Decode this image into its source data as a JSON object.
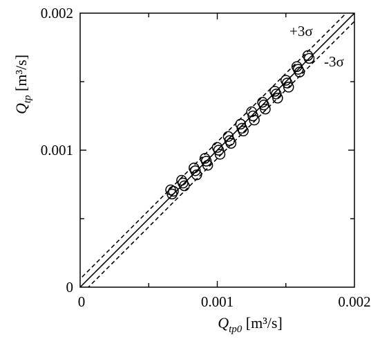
{
  "chart_data": {
    "type": "scatter",
    "x_axis": {
      "title_var": "Q",
      "title_sub": "tp0",
      "title_unit": " [m³/s]",
      "range": [
        0,
        0.002
      ],
      "ticks": [
        0,
        0.001,
        0.002
      ],
      "tick_labels": [
        "0",
        "0.001",
        "0.002"
      ],
      "minor_ticks": [
        0.0005,
        0.0015
      ]
    },
    "y_axis": {
      "title_var": "Q",
      "title_sub": "tp",
      "title_unit": " [m³/s]",
      "range": [
        0,
        0.002
      ],
      "ticks": [
        0,
        0.001,
        0.002
      ],
      "tick_labels": [
        "0",
        "0.001",
        "0.002"
      ],
      "minor_ticks": [
        0.0005,
        0.0015
      ]
    },
    "grid": false,
    "lines": [
      {
        "kind": "identity",
        "style": "solid",
        "intercept": 0.0
      },
      {
        "kind": "upper_bound",
        "style": "dashed",
        "intercept": 6e-05,
        "label": "+3σ"
      },
      {
        "kind": "lower_bound",
        "style": "dashed",
        "intercept": -6e-05,
        "label": "-3σ"
      }
    ],
    "series": [
      {
        "marker": "open-circle",
        "points": [
          [
            0.00066,
            0.00071
          ],
          [
            0.00067,
            0.00068
          ],
          [
            0.00068,
            0.0007
          ],
          [
            0.00074,
            0.00078
          ],
          [
            0.00075,
            0.00076
          ],
          [
            0.00076,
            0.00074
          ],
          [
            0.00083,
            0.00087
          ],
          [
            0.00084,
            0.00085
          ],
          [
            0.00085,
            0.00082
          ],
          [
            0.00091,
            0.00094
          ],
          [
            0.00092,
            0.00092
          ],
          [
            0.00093,
            0.00089
          ],
          [
            0.001,
            0.00102
          ],
          [
            0.00101,
            0.001
          ],
          [
            0.00102,
            0.00097
          ],
          [
            0.00108,
            0.0011
          ],
          [
            0.00109,
            0.00107
          ],
          [
            0.0011,
            0.00105
          ],
          [
            0.00117,
            0.00119
          ],
          [
            0.00118,
            0.00116
          ],
          [
            0.00119,
            0.00114
          ],
          [
            0.00125,
            0.00128
          ],
          [
            0.00126,
            0.00125
          ],
          [
            0.00127,
            0.00122
          ],
          [
            0.00133,
            0.00135
          ],
          [
            0.00134,
            0.00133
          ],
          [
            0.00135,
            0.0013
          ],
          [
            0.00142,
            0.00143
          ],
          [
            0.00143,
            0.00141
          ],
          [
            0.00144,
            0.00138
          ],
          [
            0.0015,
            0.00151
          ],
          [
            0.00151,
            0.00149
          ],
          [
            0.00152,
            0.00146
          ],
          [
            0.00158,
            0.00161
          ],
          [
            0.00159,
            0.00159
          ],
          [
            0.0016,
            0.00157
          ],
          [
            0.00166,
            0.00169
          ],
          [
            0.00167,
            0.00167
          ]
        ]
      }
    ]
  }
}
